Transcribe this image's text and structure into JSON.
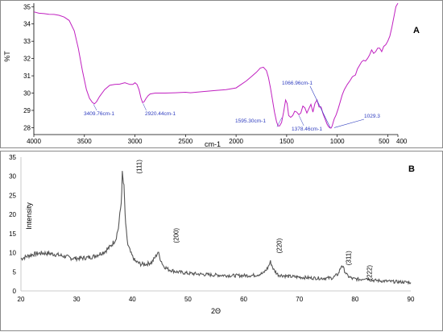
{
  "chart_data": [
    {
      "type": "line",
      "panel_label": "A",
      "xlabel": "cm-1",
      "ylabel": "%T",
      "xlim": [
        4000,
        400
      ],
      "ylim": [
        27.6,
        35.2
      ],
      "x_ticks": [
        4000,
        3500,
        3000,
        2500,
        2000,
        1500,
        1000,
        500,
        400
      ],
      "x_tick_labels": [
        "4000",
        "3500",
        "3000",
        "2500",
        "2000",
        "1500",
        "1000",
        "500",
        "400"
      ],
      "y_ticks": [
        28,
        29,
        30,
        31,
        32,
        33,
        34,
        35
      ],
      "color": "#c020c0",
      "series": [
        {
          "x": [
            4000,
            3950,
            3900,
            3850,
            3800,
            3750,
            3700,
            3650,
            3600,
            3560,
            3520,
            3480,
            3450,
            3420,
            3400,
            3380,
            3350,
            3300,
            3250,
            3200,
            3150,
            3100,
            3050,
            3020,
            3000,
            2980,
            2960,
            2940,
            2925,
            2910,
            2890,
            2870,
            2850,
            2800,
            2700,
            2600,
            2500,
            2450,
            2400,
            2300,
            2200,
            2100,
            2000,
            1950,
            1900,
            1850,
            1800,
            1760,
            1730,
            1700,
            1680,
            1660,
            1640,
            1620,
            1600,
            1585,
            1570,
            1550,
            1530,
            1510,
            1495,
            1480,
            1460,
            1440,
            1420,
            1400,
            1380,
            1360,
            1340,
            1320,
            1300,
            1280,
            1260,
            1240,
            1220,
            1200,
            1180,
            1160,
            1140,
            1120,
            1100,
            1085,
            1070,
            1060,
            1050,
            1040,
            1030,
            1010,
            990,
            970,
            950,
            930,
            900,
            870,
            850,
            820,
            800,
            780,
            760,
            740,
            720,
            700,
            680,
            660,
            640,
            620,
            600,
            580,
            560,
            540,
            520,
            500,
            480,
            460,
            440,
            420,
            400
          ],
          "y": [
            34.7,
            34.62,
            34.6,
            34.56,
            34.55,
            34.5,
            34.4,
            34.2,
            33.6,
            32.6,
            31.3,
            30.2,
            29.7,
            29.45,
            29.38,
            29.5,
            29.8,
            30.2,
            30.45,
            30.5,
            30.52,
            30.6,
            30.5,
            30.5,
            30.6,
            30.5,
            30.2,
            29.7,
            29.45,
            29.5,
            29.7,
            29.85,
            29.95,
            30.0,
            30.0,
            30.02,
            30.05,
            30.02,
            30.05,
            30.1,
            30.15,
            30.2,
            30.3,
            30.5,
            30.7,
            30.95,
            31.2,
            31.45,
            31.5,
            31.3,
            30.9,
            30.3,
            29.6,
            28.9,
            28.35,
            28.1,
            28.1,
            28.3,
            28.9,
            29.6,
            29.4,
            28.7,
            28.6,
            28.7,
            28.95,
            28.9,
            28.75,
            28.85,
            29.25,
            29.15,
            28.85,
            29.1,
            29.35,
            28.9,
            29.4,
            29.6,
            29.2,
            29.2,
            28.8,
            28.5,
            28.2,
            28.05,
            27.98,
            27.98,
            28.1,
            28.3,
            28.5,
            28.75,
            29.1,
            29.5,
            29.9,
            30.2,
            30.5,
            30.75,
            30.95,
            31.05,
            31.4,
            31.6,
            31.8,
            31.9,
            31.85,
            32.0,
            32.2,
            32.5,
            32.3,
            32.4,
            32.6,
            32.6,
            32.4,
            32.7,
            32.8,
            33.0,
            33.3,
            33.8,
            34.4,
            35.0,
            35.4
          ]
        }
      ],
      "annotations": [
        {
          "text": "3409.76cm-1",
          "x": 3409.76,
          "y": 29.4
        },
        {
          "text": "2920.44cm-1",
          "x": 2920.44,
          "y": 29.45
        },
        {
          "text": "1595.30cm-1",
          "x": 1595.3,
          "y": 28.1
        },
        {
          "text": "1378.46cm-1",
          "x": 1378.46,
          "y": 28.75
        },
        {
          "text": "1066.96cm-1",
          "x": 1066.96,
          "y": 27.98
        },
        {
          "text": "1029.3",
          "x": 1029.3,
          "y": 28.1
        }
      ]
    },
    {
      "type": "line",
      "panel_label": "B",
      "xlabel": "2Θ",
      "ylabel": "Intensity",
      "xlim": [
        20,
        90
      ],
      "ylim": [
        0,
        35
      ],
      "x_ticks": [
        20,
        30,
        40,
        50,
        60,
        70,
        80,
        90
      ],
      "y_ticks": [
        0,
        5,
        10,
        15,
        20,
        25,
        30,
        35
      ],
      "color": "#555555",
      "series": [
        {
          "x": [
            20,
            21,
            22,
            23,
            24,
            25,
            26,
            27,
            28,
            29,
            30,
            31,
            32,
            33,
            34,
            35,
            36,
            37,
            37.5,
            38,
            38.2,
            38.5,
            38.8,
            39.2,
            39.8,
            40.5,
            41.5,
            42.5,
            43.5,
            44.2,
            44.6,
            45,
            45.6,
            46.5,
            48,
            50,
            52,
            54,
            56,
            58,
            60,
            62,
            63.5,
            64.3,
            64.8,
            65.4,
            66.2,
            68,
            70,
            72,
            74,
            76,
            77,
            77.6,
            78,
            78.6,
            79.5,
            81,
            81.8,
            82.3,
            83,
            85,
            87,
            89,
            90
          ],
          "y": [
            8.4,
            9.0,
            9.5,
            9.8,
            9.9,
            9.8,
            9.6,
            9.3,
            9.0,
            8.6,
            8.5,
            8.6,
            8.7,
            9.0,
            9.6,
            10.3,
            11.5,
            13.5,
            16.5,
            23,
            30.5,
            27,
            17,
            12,
            9.6,
            7.8,
            7.0,
            7.0,
            7.5,
            9.0,
            10.2,
            8.5,
            6.5,
            5.6,
            5.0,
            4.6,
            4.4,
            4.2,
            4.1,
            4.0,
            4.0,
            4.1,
            4.6,
            6.0,
            7.6,
            5.5,
            4.2,
            3.8,
            3.6,
            3.4,
            3.3,
            3.4,
            4.5,
            6.8,
            5.6,
            4.0,
            3.2,
            3.0,
            3.4,
            3.2,
            2.8,
            2.6,
            2.4,
            2.3,
            2.2
          ]
        }
      ],
      "annotations": [
        {
          "text": "(111)",
          "x": 41.6,
          "y": 32.5
        },
        {
          "text": "(200)",
          "x": 48.3,
          "y": 14.5
        },
        {
          "text": "(220)",
          "x": 66.8,
          "y": 11.8
        },
        {
          "text": "(311)",
          "x": 79.2,
          "y": 8.6
        },
        {
          "text": "(222)",
          "x": 83.0,
          "y": 4.8
        }
      ]
    }
  ]
}
